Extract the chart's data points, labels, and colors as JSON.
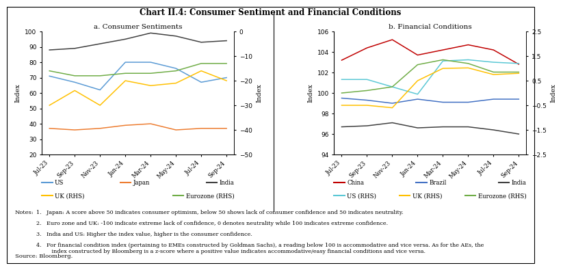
{
  "title": "Chart II.4: Consumer Sentiment and Financial Conditions",
  "x_labels": [
    "Jul-23",
    "Sep-23",
    "Nov-23",
    "Jan-24",
    "Mar-24",
    "May-24",
    "Jul-24",
    "Sep-24"
  ],
  "panel_a": {
    "title": "a. Consumer Sentiments",
    "ylabel_left": "Index",
    "ylabel_right": "Index",
    "ylim_left": [
      20,
      100
    ],
    "ylim_right": [
      -50,
      0
    ],
    "yticks_left": [
      20,
      30,
      40,
      50,
      60,
      70,
      80,
      90,
      100
    ],
    "yticks_right": [
      -50,
      -40,
      -30,
      -20,
      -10,
      0
    ],
    "lhs_series": {
      "US": {
        "values": [
          71,
          67,
          62,
          80,
          80,
          76,
          67,
          70
        ],
        "color": "#5B9BD5"
      },
      "Japan": {
        "values": [
          37,
          36,
          37,
          39,
          40,
          36,
          37,
          37
        ],
        "color": "#ED7D31"
      },
      "India": {
        "values": [
          88,
          89,
          92,
          95,
          99,
          97,
          93,
          94
        ],
        "color": "#404040"
      }
    },
    "rhs_series": {
      "UK (RHS)": {
        "values": [
          -30,
          -24,
          -30,
          -20,
          -22,
          -21,
          -16,
          -20
        ],
        "color": "#FFC000"
      },
      "Eurozone (RHS)": {
        "values": [
          -16,
          -18,
          -18,
          -17,
          -17,
          -16,
          -13,
          -13
        ],
        "color": "#70AD47"
      }
    }
  },
  "panel_b": {
    "title": "b. Financial Conditions",
    "ylabel_left": "Index",
    "ylabel_right": "Index",
    "ylim_left": [
      94,
      106
    ],
    "ylim_right": [
      -2.5,
      2.5
    ],
    "yticks_left": [
      94,
      96,
      98,
      100,
      102,
      104,
      106
    ],
    "yticks_right": [
      -2.5,
      -1.5,
      -0.5,
      0.5,
      1.5,
      2.5
    ],
    "lhs_series": {
      "China": {
        "values": [
          103.2,
          104.4,
          105.2,
          103.7,
          104.2,
          104.7,
          104.2,
          102.8
        ],
        "color": "#C00000"
      },
      "Brazil": {
        "values": [
          99.5,
          99.3,
          99.0,
          99.4,
          99.1,
          99.1,
          99.4,
          99.4
        ],
        "color": "#4472C4"
      },
      "India": {
        "values": [
          96.7,
          96.8,
          97.1,
          96.6,
          96.7,
          96.7,
          96.4,
          96.0
        ],
        "color": "#404040"
      }
    },
    "rhs_series": {
      "US (RHS)": {
        "values": [
          0.55,
          0.55,
          0.25,
          -0.05,
          1.3,
          1.35,
          1.25,
          1.2
        ],
        "color": "#5BC8D5"
      },
      "UK (RHS)": {
        "values": [
          -0.5,
          -0.5,
          -0.6,
          0.5,
          1.0,
          1.02,
          0.75,
          0.8
        ],
        "color": "#FFC000"
      },
      "Eurozone (RHS)": {
        "values": [
          0.0,
          0.1,
          0.25,
          1.15,
          1.35,
          1.2,
          0.85,
          0.85
        ],
        "color": "#70AD47"
      }
    }
  },
  "legend_a_row1": [
    "US",
    "Japan",
    "India"
  ],
  "legend_a_row2": [
    "UK (RHS)",
    "Eurozone (RHS)"
  ],
  "legend_b_row1": [
    "China",
    "Brazil",
    "India"
  ],
  "legend_b_row2": [
    "US (RHS)",
    "UK (RHS)",
    "Eurozone (RHS)"
  ],
  "notes_label": "Notes:",
  "notes": [
    "1.   Japan: A score above 50 indicates consumer optimism, below 50 shows lack of consumer confidence and 50 indicates neutrality.",
    "2.   Euro zone and UK: -100 indicate extreme lack of confidence, 0 denotes neutrality while 100 indicates extreme confidence.",
    "3.   India and US: Higher the index value, higher is the consumer confidence.",
    "4.   For financial condition index (pertaining to EMEs constructed by Goldman Sachs), a reading below 100 is accommodative and vice versa. As for the AEs, the\n         index constructed by Bloomberg is a z-score where a positive value indicates accommodative/easy financial conditions and vice versa."
  ],
  "source": "Source: Bloomberg."
}
